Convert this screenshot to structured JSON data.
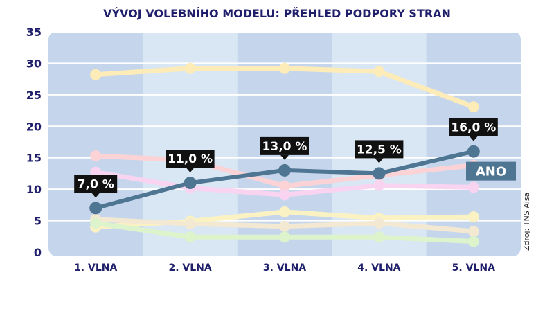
{
  "chart_data": {
    "type": "line",
    "title": "VÝVOJ VOLEBNÍHO MODELU: PŘEHLED PODPORY STRAN",
    "source": "Zdroj: TNS Aisa",
    "categories": [
      "1. VLNA",
      "2. VLNA",
      "3. VLNA",
      "4. VLNA",
      "5. VLNA"
    ],
    "ylim": [
      0,
      35
    ],
    "yticks": [
      0,
      5,
      10,
      15,
      20,
      25,
      30,
      35
    ],
    "grid": true,
    "series": [
      {
        "name": "",
        "color": "#fdebb8",
        "values": [
          28.2,
          29.2,
          29.2,
          28.7,
          23.1
        ]
      },
      {
        "name": "",
        "color": "#fbd3d7",
        "values": [
          15.3,
          14.6,
          10.5,
          12.2,
          13.8
        ]
      },
      {
        "name": "",
        "color": "#f8d4f0",
        "values": [
          12.7,
          10.2,
          9.1,
          10.6,
          10.3
        ]
      },
      {
        "name": "",
        "color": "#fbf2c4",
        "values": [
          4.0,
          4.9,
          6.4,
          5.4,
          5.6
        ]
      },
      {
        "name": "",
        "color": "#f3e8d2",
        "values": [
          5.2,
          4.5,
          4.1,
          4.6,
          3.3
        ]
      },
      {
        "name": "",
        "color": "#dcf3cc",
        "values": [
          4.6,
          2.4,
          2.4,
          2.4,
          1.7
        ]
      },
      {
        "name": "ANO",
        "color": "#4e7591",
        "highlight": true,
        "values": [
          7.0,
          11.0,
          13.0,
          12.5,
          16.0
        ],
        "labels": [
          "7,0 %",
          "11,0 %",
          "13,0 %",
          "12,5 %",
          "16,0 %"
        ]
      }
    ]
  }
}
